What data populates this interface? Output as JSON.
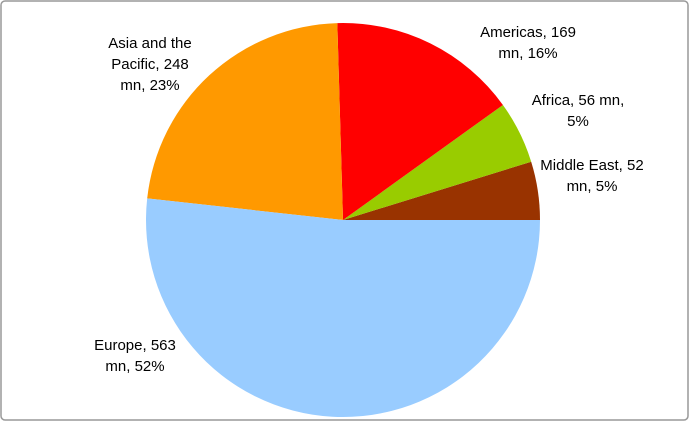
{
  "chart_data": {
    "type": "pie",
    "values": [
      52,
      56,
      169,
      248,
      563
    ],
    "value_labels": [
      "Middle East, 52 mn, 5%",
      "Africa, 56 mn, 5%",
      "Americas, 169 mn, 16%",
      "Asia and the Pacific, 248 mn, 23%",
      "Europe, 563 mn, 52%"
    ],
    "colors": [
      "#993300",
      "#99cc00",
      "#ff0000",
      "#ff9900",
      "#99ccff"
    ]
  }
}
